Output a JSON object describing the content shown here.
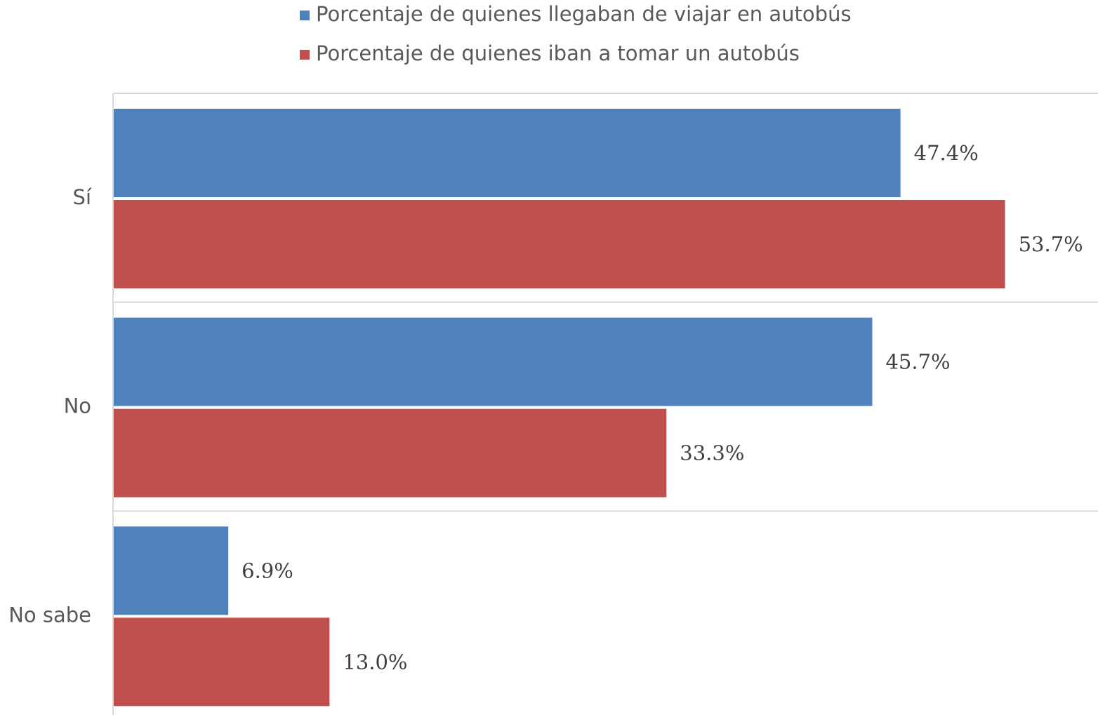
{
  "chart_data": {
    "type": "hbar",
    "categories": [
      "Sí",
      "No",
      "No sabe"
    ],
    "series": [
      {
        "name": "Porcentaje de quienes llegaban de viajar en autobús",
        "color": "#4f81bd",
        "values": [
          47.4,
          45.7,
          6.9
        ],
        "value_labels": [
          "47.4%",
          "45.7%",
          "6.9%"
        ]
      },
      {
        "name": "Porcentaje de quienes iban a tomar un autobús",
        "color": "#c0504d",
        "values": [
          53.7,
          33.3,
          13.0
        ],
        "value_labels": [
          "53.7%",
          "33.3%",
          "13.0%"
        ]
      }
    ],
    "xlim": [
      0,
      59.3
    ],
    "legend": "top"
  }
}
